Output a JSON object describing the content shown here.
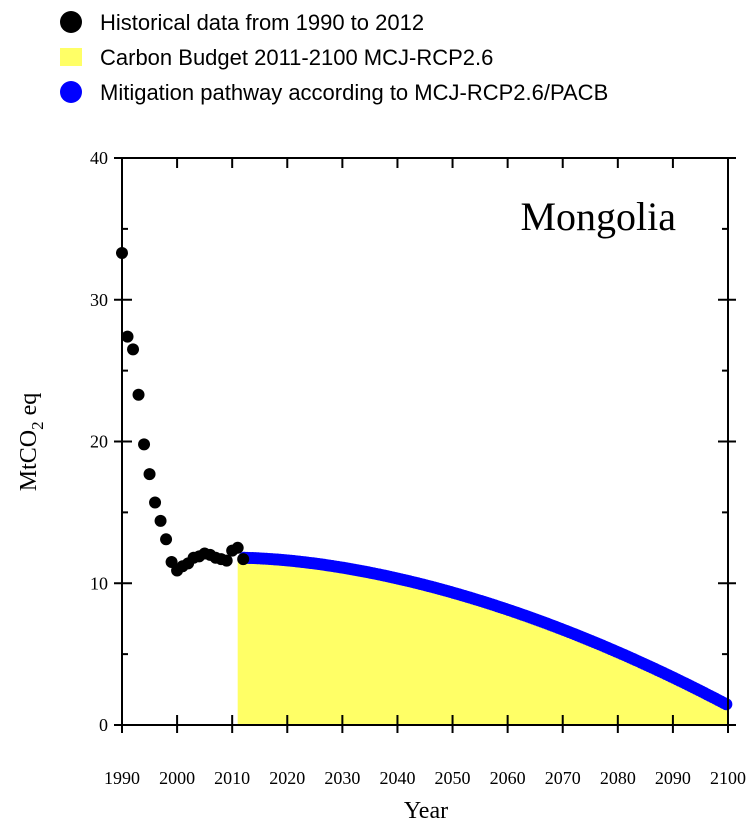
{
  "chart_data": {
    "type": "scatter",
    "annotation": "Mongolia",
    "xlabel": "Year",
    "ylabel_main": "MtCO",
    "ylabel_sub": "2",
    "ylabel_suffix": " eq",
    "xlim": [
      1990,
      2100
    ],
    "ylim": [
      0,
      40
    ],
    "xticks": [
      1990,
      2000,
      2010,
      2020,
      2030,
      2040,
      2050,
      2060,
      2070,
      2080,
      2090,
      2100
    ],
    "yticks": [
      0,
      10,
      20,
      30,
      40
    ],
    "legend": {
      "position": "top-left",
      "entries": [
        {
          "label": "Historical data from 1990 to 2012",
          "color": "#000000",
          "marker": "circle"
        },
        {
          "label": "Carbon Budget 2011-2100 MCJ-RCP2.6",
          "color": "#ffff66",
          "marker": "square"
        },
        {
          "label": "Mitigation pathway according to MCJ-RCP2.6/PACB",
          "color": "#0000ff",
          "marker": "circle"
        }
      ]
    },
    "series": [
      {
        "name": "Historical data from 1990 to 2012",
        "color": "#000000",
        "x": [
          1990,
          1991,
          1992,
          1993,
          1994,
          1995,
          1996,
          1997,
          1998,
          1999,
          2000,
          2001,
          2002,
          2003,
          2004,
          2005,
          2006,
          2007,
          2008,
          2009,
          2010,
          2011,
          2012
        ],
        "y": [
          33.3,
          27.4,
          26.5,
          23.3,
          19.8,
          17.7,
          15.7,
          14.4,
          13.1,
          11.5,
          10.9,
          11.2,
          11.4,
          11.8,
          11.9,
          12.1,
          12.0,
          11.8,
          11.7,
          11.6,
          12.3,
          12.5,
          11.7
        ]
      },
      {
        "name": "Mitigation pathway according to MCJ-RCP2.6/PACB",
        "color": "#0000ff",
        "x_start": 2011,
        "x_end": 2100,
        "y_start": 11.8,
        "y_end": 1.4
      }
    ],
    "budget_area": {
      "name": "Carbon Budget 2011-2100 MCJ-RCP2.6",
      "color": "#ffff66",
      "x_start": 2011,
      "x_end": 2100
    }
  }
}
